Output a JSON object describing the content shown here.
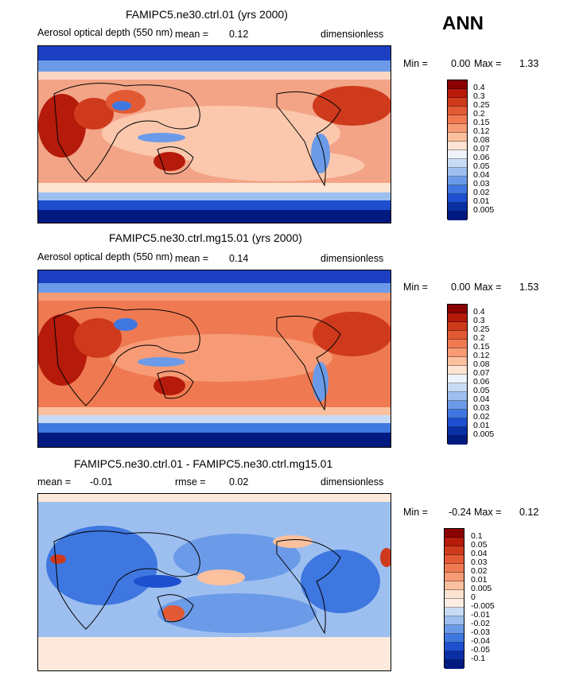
{
  "season": "ANN",
  "panels": [
    {
      "id": "p1",
      "title": "FAMIPC5.ne30.ctrl.01 (yrs 2000)",
      "variable": "Aerosol optical depth (550 nm)",
      "mean_label": "mean =",
      "mean_value": "0.12",
      "units": "dimensionless",
      "min_label": "Min =",
      "min_value": "0.00",
      "max_label": "Max =",
      "max_value": "1.33",
      "colorbar": {
        "labels": [
          "0.4",
          "0.3",
          "0.25",
          "0.2",
          "0.15",
          "0.12",
          "0.08",
          "0.07",
          "0.06",
          "0.05",
          "0.04",
          "0.03",
          "0.02",
          "0.01",
          "0.005"
        ],
        "colors": [
          "#8b0000",
          "#b51a0a",
          "#cf3a1c",
          "#e25a34",
          "#ef7a52",
          "#f69b75",
          "#fbc09d",
          "#fde3d1",
          "#eef3fb",
          "#c7dbf6",
          "#9dbff0",
          "#6b9be8",
          "#3f77e0",
          "#1d4fcf",
          "#0a2fa3",
          "#001a80"
        ]
      }
    },
    {
      "id": "p2",
      "title": "FAMIPC5.ne30.ctrl.mg15.01 (yrs 2000)",
      "variable": "Aerosol optical depth (550 nm)",
      "mean_label": "mean =",
      "mean_value": "0.14",
      "units": "dimensionless",
      "min_label": "Min =",
      "min_value": "0.00",
      "max_label": "Max =",
      "max_value": "1.53",
      "colorbar": {
        "labels": [
          "0.4",
          "0.3",
          "0.25",
          "0.2",
          "0.15",
          "0.12",
          "0.08",
          "0.07",
          "0.06",
          "0.05",
          "0.04",
          "0.03",
          "0.02",
          "0.01",
          "0.005"
        ],
        "colors": [
          "#8b0000",
          "#b51a0a",
          "#cf3a1c",
          "#e25a34",
          "#ef7a52",
          "#f69b75",
          "#fbc09d",
          "#fde3d1",
          "#eef3fb",
          "#c7dbf6",
          "#9dbff0",
          "#6b9be8",
          "#3f77e0",
          "#1d4fcf",
          "#0a2fa3",
          "#001a80"
        ]
      }
    },
    {
      "id": "p3",
      "title": "FAMIPC5.ne30.ctrl.01 - FAMIPC5.ne30.ctrl.mg15.01",
      "mean_label": "mean =",
      "mean_value": "-0.01",
      "rmse_label": "rmse =",
      "rmse_value": "0.02",
      "units": "dimensionless",
      "min_label": "Min =",
      "min_value": "-0.24",
      "max_label": "Max =",
      "max_value": "0.12",
      "colorbar": {
        "labels": [
          "0.1",
          "0.05",
          "0.04",
          "0.03",
          "0.02",
          "0.01",
          "0.005",
          "0",
          "-0.005",
          "-0.01",
          "-0.02",
          "-0.03",
          "-0.04",
          "-0.05",
          "-0.1"
        ],
        "colors": [
          "#8b0000",
          "#b51a0a",
          "#cf3a1c",
          "#e25a34",
          "#ef7a52",
          "#f69b75",
          "#fbc09d",
          "#fde3d1",
          "#fdeee3",
          "#c7dbf6",
          "#9dbff0",
          "#6b9be8",
          "#3f77e0",
          "#1d4fcf",
          "#0a2fa3",
          "#001a80"
        ]
      }
    }
  ]
}
